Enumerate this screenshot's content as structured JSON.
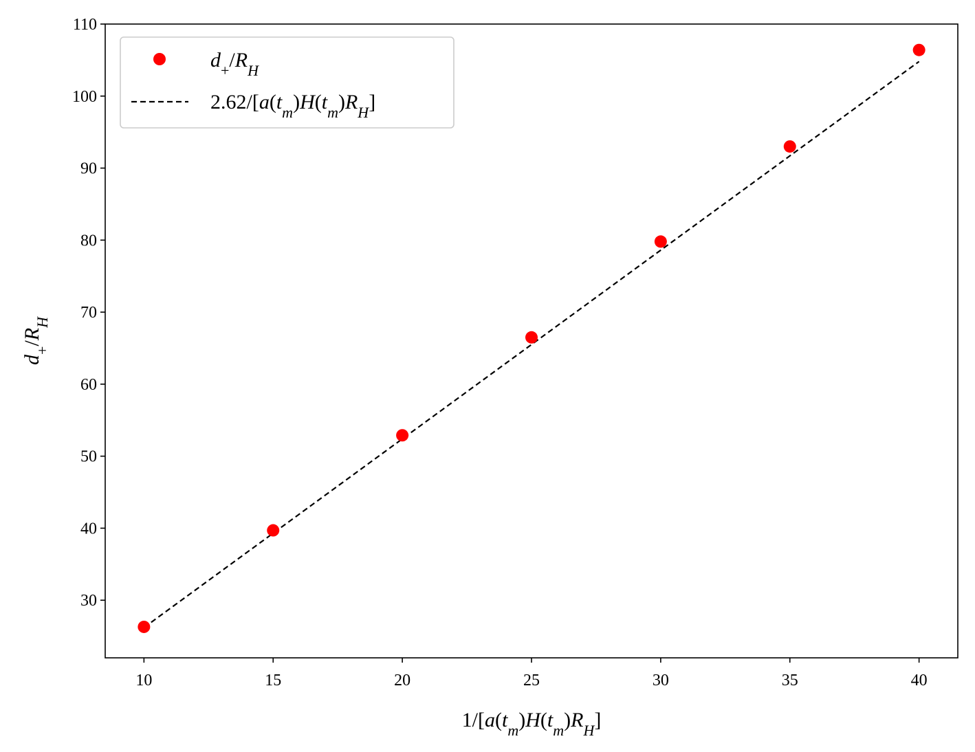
{
  "chart_data": {
    "type": "scatter",
    "title": "",
    "xlabel": "1/[a(t_m)H(t_m)R_H]",
    "ylabel": "d_+/R_H",
    "xlim": [
      8.5,
      41.5
    ],
    "ylim": [
      22,
      110
    ],
    "xticks": [
      "10",
      "15",
      "20",
      "25",
      "30",
      "35",
      "40"
    ],
    "yticks": [
      "30",
      "40",
      "50",
      "60",
      "70",
      "80",
      "90",
      "100",
      "110"
    ],
    "grid": false,
    "legend_position": "upper-left",
    "series": [
      {
        "name": "d_+/R_H",
        "kind": "scatter",
        "color": "#ff0000",
        "x": [
          10,
          15,
          20,
          25,
          30,
          35,
          40
        ],
        "y": [
          26.3,
          39.7,
          52.9,
          66.5,
          79.8,
          93.0,
          106.4
        ]
      },
      {
        "name": "2.62/[a(t_m)H(t_m)R_H]",
        "kind": "line",
        "style": "dashed",
        "color": "#000000",
        "x": [
          10,
          40
        ],
        "y": [
          26.2,
          104.8
        ]
      }
    ]
  }
}
